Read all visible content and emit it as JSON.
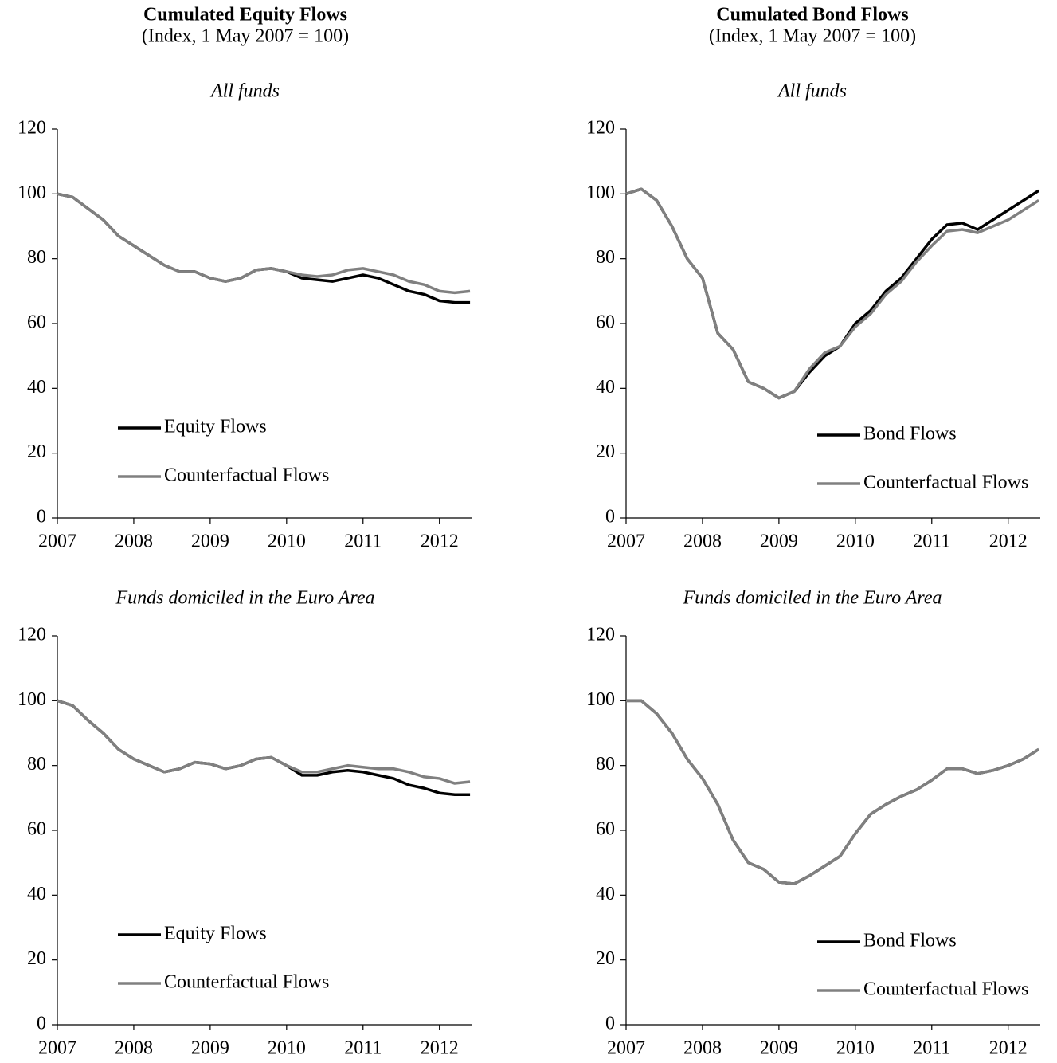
{
  "chart_data": [
    {
      "type": "line",
      "title": "Cumulated Equity Flows",
      "subtitle": "(Index, 1 May 2007 = 100)",
      "panel_title": "All funds",
      "legend": "lower left",
      "x": [
        2007.0,
        2007.2,
        2007.4,
        2007.6,
        2007.8,
        2008.0,
        2008.2,
        2008.4,
        2008.6,
        2008.8,
        2009.0,
        2009.2,
        2009.4,
        2009.6,
        2009.8,
        2010.0,
        2010.2,
        2010.4,
        2010.6,
        2010.8,
        2011.0,
        2011.2,
        2011.4,
        2011.6,
        2011.8,
        2012.0,
        2012.2,
        2012.4
      ],
      "series": [
        {
          "name": "Equity Flows",
          "color": "#000000",
          "values": [
            100,
            99,
            95.5,
            92,
            87,
            84,
            81,
            78,
            76,
            76,
            74,
            73,
            74,
            76.5,
            77,
            76,
            74,
            73.5,
            73,
            74,
            75,
            74,
            72,
            70,
            69,
            67,
            66.5,
            66.5
          ]
        },
        {
          "name": "Counterfactual Flows",
          "color": "#808080",
          "values": [
            100,
            99,
            95.5,
            92,
            87,
            84,
            81,
            78,
            76,
            76,
            74,
            73,
            74,
            76.5,
            77,
            76,
            75,
            74.5,
            75,
            76.5,
            77,
            76,
            75,
            73,
            72,
            70,
            69.5,
            70
          ]
        }
      ],
      "xlim": [
        2007,
        2012.42
      ],
      "xticks": [
        2007,
        2008,
        2009,
        2010,
        2011,
        2012
      ],
      "ylim": [
        0,
        120
      ],
      "yticks": [
        0,
        20,
        40,
        60,
        80,
        100,
        120
      ]
    },
    {
      "type": "line",
      "title": "Cumulated Bond Flows",
      "subtitle": "(Index, 1 May 2007 = 100)",
      "panel_title": "All funds",
      "legend": "lower right",
      "x": [
        2007.0,
        2007.2,
        2007.4,
        2007.6,
        2007.8,
        2008.0,
        2008.2,
        2008.4,
        2008.6,
        2008.8,
        2009.0,
        2009.2,
        2009.4,
        2009.6,
        2009.8,
        2010.0,
        2010.2,
        2010.4,
        2010.6,
        2010.8,
        2011.0,
        2011.2,
        2011.4,
        2011.6,
        2011.8,
        2012.0,
        2012.2,
        2012.4
      ],
      "series": [
        {
          "name": "Bond Flows",
          "color": "#000000",
          "values": [
            100,
            101.5,
            98,
            90,
            80,
            74,
            57,
            52,
            42,
            40,
            37,
            39,
            45,
            50,
            53,
            60,
            64,
            70,
            74,
            80,
            86,
            90.5,
            91,
            89,
            92,
            95,
            98,
            101
          ]
        },
        {
          "name": "Counterfactual Flows",
          "color": "#808080",
          "values": [
            100,
            101.5,
            98,
            90,
            80,
            74,
            57,
            52,
            42,
            40,
            37,
            39,
            46,
            51,
            53,
            59,
            63,
            69,
            73,
            79,
            84,
            88.5,
            89,
            88,
            90,
            92,
            95,
            98
          ]
        }
      ],
      "xlim": [
        2007,
        2012.42
      ],
      "xticks": [
        2007,
        2008,
        2009,
        2010,
        2011,
        2012
      ],
      "ylim": [
        0,
        120
      ],
      "yticks": [
        0,
        20,
        40,
        60,
        80,
        100,
        120
      ]
    },
    {
      "type": "line",
      "panel_title": "Funds domiciled in the Euro Area",
      "legend": "lower left",
      "x": [
        2007.0,
        2007.2,
        2007.4,
        2007.6,
        2007.8,
        2008.0,
        2008.2,
        2008.4,
        2008.6,
        2008.8,
        2009.0,
        2009.2,
        2009.4,
        2009.6,
        2009.8,
        2010.0,
        2010.2,
        2010.4,
        2010.6,
        2010.8,
        2011.0,
        2011.2,
        2011.4,
        2011.6,
        2011.8,
        2012.0,
        2012.2,
        2012.4
      ],
      "series": [
        {
          "name": "Equity Flows",
          "color": "#000000",
          "values": [
            100,
            98.5,
            94,
            90,
            85,
            82,
            80,
            78,
            79,
            81,
            80.5,
            79,
            80,
            82,
            82.5,
            80,
            77,
            77,
            78,
            78.5,
            78,
            77,
            76,
            74,
            73,
            71.5,
            71,
            71
          ]
        },
        {
          "name": "Counterfactual Flows",
          "color": "#808080",
          "values": [
            100,
            98.5,
            94,
            90,
            85,
            82,
            80,
            78,
            79,
            81,
            80.5,
            79,
            80,
            82,
            82.5,
            80,
            78,
            78,
            79,
            80,
            79.5,
            79,
            79,
            78,
            76.5,
            76,
            74.5,
            75
          ]
        }
      ],
      "xlim": [
        2007,
        2012.42
      ],
      "xticks": [
        2007,
        2008,
        2009,
        2010,
        2011,
        2012
      ],
      "ylim": [
        0,
        120
      ],
      "yticks": [
        0,
        20,
        40,
        60,
        80,
        100,
        120
      ]
    },
    {
      "type": "line",
      "panel_title": "Funds domiciled in the Euro Area",
      "legend": "lower right",
      "x": [
        2007.0,
        2007.2,
        2007.4,
        2007.6,
        2007.8,
        2008.0,
        2008.2,
        2008.4,
        2008.6,
        2008.8,
        2009.0,
        2009.2,
        2009.4,
        2009.6,
        2009.8,
        2010.0,
        2010.2,
        2010.4,
        2010.6,
        2010.8,
        2011.0,
        2011.2,
        2011.4,
        2011.6,
        2011.8,
        2012.0,
        2012.2,
        2012.4
      ],
      "series": [
        {
          "name": "Bond Flows",
          "color": "#000000",
          "values": [
            100,
            100,
            96,
            90,
            82,
            76,
            68,
            57,
            50,
            48,
            44,
            43.5,
            46,
            49,
            52,
            59,
            65,
            68,
            70.5,
            72.5,
            75.5,
            79,
            79,
            77.5,
            78.5,
            80,
            82,
            85
          ]
        },
        {
          "name": "Counterfactual Flows",
          "color": "#808080",
          "values": [
            100,
            100,
            96,
            90,
            82,
            76,
            68,
            57,
            50,
            48,
            44,
            43.5,
            46,
            49,
            52,
            59,
            65,
            68,
            70.5,
            72.5,
            75.5,
            79,
            79,
            77.5,
            78.5,
            80,
            82,
            85
          ]
        }
      ],
      "xlim": [
        2007,
        2012.42
      ],
      "xticks": [
        2007,
        2008,
        2009,
        2010,
        2011,
        2012
      ],
      "ylim": [
        0,
        120
      ],
      "yticks": [
        0,
        20,
        40,
        60,
        80,
        100,
        120
      ]
    }
  ]
}
